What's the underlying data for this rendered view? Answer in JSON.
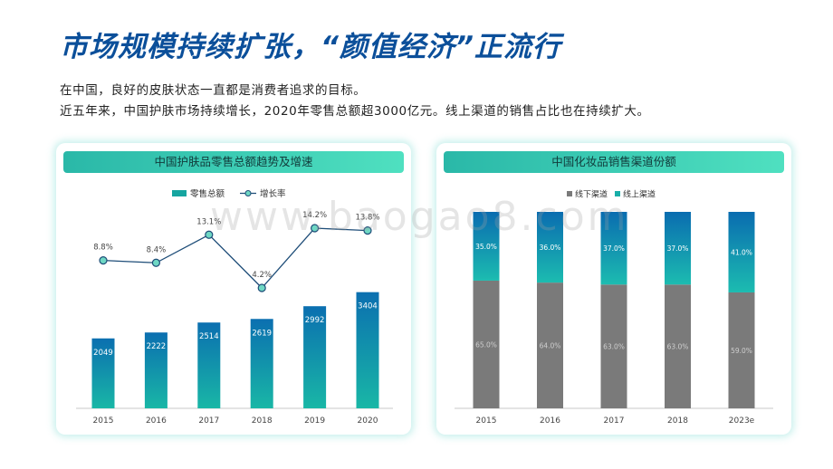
{
  "header": {
    "title": "市场规模持续扩张，“颜值经济”正流行",
    "intro": [
      "在中国，良好的皮肤状态一直都是消费者追求的目标。",
      "近五年来，中国护肤市场持续增长，2020年零售总额超3000亿元。线上渠道的销售占比也在持续扩大。"
    ]
  },
  "watermark": "www.baogao8.com",
  "chart_data": [
    {
      "type": "bar",
      "title": "中国护肤品零售总额趋势及增速",
      "categories": [
        "2015",
        "2016",
        "2017",
        "2018",
        "2019",
        "2020"
      ],
      "series": [
        {
          "name": "零售总额",
          "type": "bar",
          "values": [
            2049,
            2222,
            2514,
            2619,
            2992,
            3404
          ],
          "color": "#16a5a0"
        },
        {
          "name": "增长率",
          "type": "line",
          "values": [
            8.8,
            8.4,
            13.1,
            4.2,
            14.2,
            13.8
          ],
          "labels": [
            "8.8%",
            "8.4%",
            "13.1%",
            "4.2%",
            "14.2%",
            "13.8%"
          ],
          "color": "#1e4d78"
        }
      ],
      "legend": "top-left",
      "grid": false
    },
    {
      "type": "bar",
      "stacked": true,
      "title": "中国化妆品销售渠道份额",
      "categories": [
        "2015",
        "2016",
        "2017",
        "2018",
        "2023e"
      ],
      "series": [
        {
          "name": "线下渠道",
          "values": [
            65.0,
            64.0,
            63.0,
            63.0,
            59.0
          ],
          "labels": [
            "65.0%",
            "64.0%",
            "63.0%",
            "63.0%",
            "59.0%"
          ],
          "color": "#7a7a7a"
        },
        {
          "name": "线上渠道",
          "values": [
            35.0,
            36.0,
            37.0,
            37.0,
            41.0
          ],
          "labels": [
            "35.0%",
            "36.0%",
            "37.0%",
            "37.0%",
            "41.0%"
          ],
          "color": "#18aea8"
        }
      ],
      "ylim": [
        0,
        100
      ],
      "legend": "top",
      "grid": false
    }
  ]
}
